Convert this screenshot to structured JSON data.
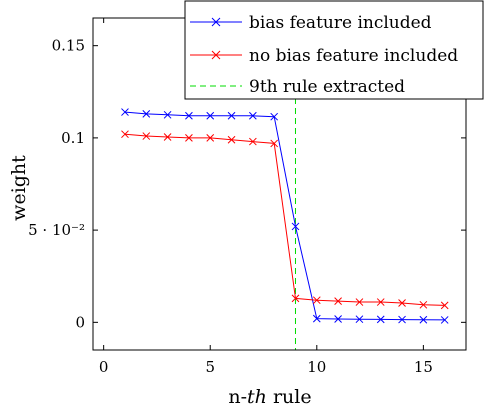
{
  "chart_data": {
    "type": "line",
    "xlabel_prefix": "n-",
    "xlabel_italic": "th",
    "xlabel_suffix": " rule",
    "ylabel": "weight",
    "xlim": [
      -0.5,
      17
    ],
    "ylim": [
      -0.015,
      0.165
    ],
    "x_ticks": [
      0,
      5,
      10,
      15
    ],
    "x_tick_labels": [
      "0",
      "5",
      "10",
      "15"
    ],
    "y_ticks": [
      0,
      0.05,
      0.1,
      0.15
    ],
    "y_tick_labels": [
      "0",
      "5 · 10⁻²",
      "0.1",
      "0.15"
    ],
    "grid": false,
    "legend_position": "top-right",
    "x": [
      1,
      2,
      3,
      4,
      5,
      6,
      7,
      8,
      9,
      10,
      11,
      12,
      13,
      14,
      15,
      16
    ],
    "series": [
      {
        "name": "bias feature included",
        "color": "#0000ff",
        "marker": "x",
        "values": [
          0.114,
          0.113,
          0.1125,
          0.112,
          0.112,
          0.112,
          0.112,
          0.1115,
          0.052,
          0.002,
          0.0018,
          0.0017,
          0.0016,
          0.0015,
          0.0014,
          0.0013
        ]
      },
      {
        "name": "no bias feature included",
        "color": "#ff0000",
        "marker": "x",
        "values": [
          0.102,
          0.101,
          0.1005,
          0.1,
          0.1,
          0.099,
          0.098,
          0.097,
          0.013,
          0.012,
          0.0115,
          0.011,
          0.011,
          0.0105,
          0.0095,
          0.0092
        ]
      }
    ],
    "vline": {
      "name": "9th rule extracted",
      "x": 9,
      "color": "#00dd00",
      "style": "dashed"
    }
  }
}
